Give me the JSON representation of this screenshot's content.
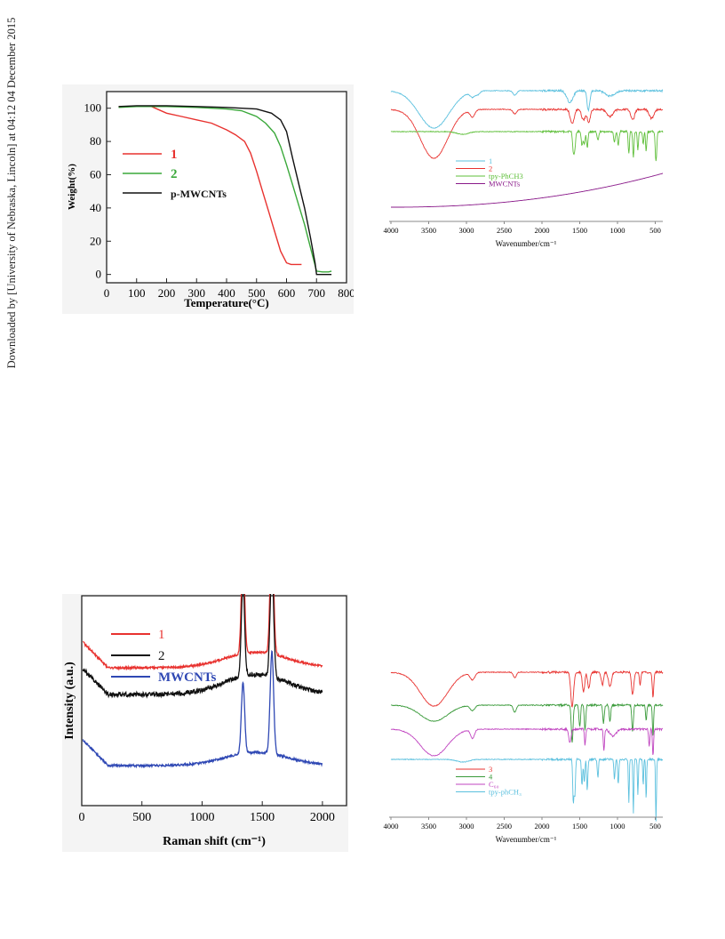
{
  "download_note": "Downloaded by [University of Nebraska, Lincoln] at 04:12 04 December 2015",
  "chart_data": [
    {
      "id": "tga",
      "type": "line",
      "xlabel": "Temperature(°C)",
      "ylabel": "Weight(%)",
      "xlim": [
        0,
        800
      ],
      "ylim": [
        -5,
        110
      ],
      "xticks": [
        "0",
        "100",
        "200",
        "300",
        "400",
        "500",
        "600",
        "700",
        "800"
      ],
      "yticks": [
        "0",
        "20",
        "40",
        "60",
        "80",
        "100"
      ],
      "grid": false,
      "legend_position": "middle-left",
      "series": [
        {
          "name": "1",
          "color": "#e8322f",
          "x": [
            40,
            100,
            150,
            200,
            250,
            300,
            350,
            400,
            430,
            460,
            480,
            500,
            520,
            540,
            560,
            580,
            600,
            615,
            630,
            650
          ],
          "y": [
            101,
            101,
            101,
            97,
            95,
            93,
            91,
            87,
            84,
            80,
            73,
            62,
            50,
            38,
            26,
            14,
            7,
            6,
            6,
            6
          ]
        },
        {
          "name": "2",
          "color": "#3aa83a",
          "x": [
            40,
            100,
            200,
            300,
            400,
            450,
            500,
            530,
            560,
            580,
            600,
            620,
            640,
            660,
            680,
            700,
            720,
            740,
            750
          ],
          "y": [
            100.5,
            101,
            101,
            100.5,
            99.5,
            98.5,
            95,
            91,
            85,
            77,
            66,
            54,
            42,
            30,
            16,
            2,
            1.5,
            1.5,
            2
          ]
        },
        {
          "name": "p-MWCNTs",
          "color": "#111111",
          "x": [
            40,
            100,
            200,
            300,
            400,
            500,
            550,
            580,
            600,
            610,
            620,
            640,
            660,
            680,
            695,
            700,
            720,
            740,
            750
          ],
          "y": [
            101,
            101.5,
            101.5,
            101,
            100.5,
            99.5,
            97,
            93,
            86,
            78,
            70,
            55,
            40,
            22,
            7,
            0,
            0,
            0,
            0
          ]
        }
      ]
    },
    {
      "id": "ftir1",
      "type": "line",
      "xlabel": "Wavenumber/cm⁻¹",
      "ylabel": "",
      "xlim": [
        4000,
        400
      ],
      "xticks": [
        "4000",
        "3500",
        "3000",
        "2500",
        "2000",
        "1500",
        "1000",
        "500"
      ],
      "grid": false,
      "legend_position": "bottom-center",
      "series": [
        {
          "name": "1",
          "color": "#5bc0de",
          "baseline": 7,
          "peaks": [
            [
              3430,
              42,
              200
            ],
            [
              2920,
              6,
              30
            ],
            [
              2850,
              4,
              25
            ],
            [
              2360,
              5,
              25
            ],
            [
              1630,
              13,
              40
            ],
            [
              1385,
              22,
              18
            ],
            [
              1100,
              6,
              60
            ]
          ]
        },
        {
          "name": "2",
          "color": "#e8322f",
          "baseline": 28,
          "peaks": [
            [
              3430,
              55,
              180
            ],
            [
              2920,
              8,
              30
            ],
            [
              2360,
              5,
              25
            ],
            [
              1600,
              16,
              25
            ],
            [
              1450,
              12,
              25
            ],
            [
              1380,
              14,
              20
            ],
            [
              1100,
              8,
              40
            ],
            [
              800,
              12,
              25
            ],
            [
              550,
              10,
              30
            ]
          ]
        },
        {
          "name": "tpy-PhCH3",
          "color": "#5fbf3a",
          "baseline": 53,
          "peaks": [
            [
              3050,
              3,
              80
            ],
            [
              1585,
              22,
              10
            ],
            [
              1565,
              18,
              10
            ],
            [
              1470,
              16,
              10
            ],
            [
              1440,
              14,
              10
            ],
            [
              1400,
              18,
              10
            ],
            [
              1260,
              10,
              10
            ],
            [
              1040,
              12,
              10
            ],
            [
              990,
              15,
              10
            ],
            [
              850,
              25,
              8
            ],
            [
              790,
              30,
              8
            ],
            [
              730,
              20,
              8
            ],
            [
              660,
              15,
              8
            ],
            [
              620,
              22,
              8
            ],
            [
              490,
              33,
              10
            ]
          ]
        },
        {
          "name": "MWCNTs",
          "color": "#8a1a8a",
          "baseline": 138,
          "rise": 38
        }
      ]
    },
    {
      "id": "raman",
      "type": "line",
      "xlabel": "Raman shift (cm⁻¹)",
      "ylabel": "Intensity (a.u.)",
      "xlim": [
        0,
        2200
      ],
      "xticks": [
        "0",
        "500",
        "1000",
        "1500",
        "2000"
      ],
      "grid": false,
      "legend_position": "top-left",
      "series": [
        {
          "name": "1",
          "color": "#e8322f",
          "baseline": 155,
          "bump": 35,
          "peaks": [
            [
              1340,
              115,
              30
            ],
            [
              1580,
              140,
              32
            ]
          ]
        },
        {
          "name": "2",
          "color": "#111111",
          "baseline": 125,
          "bump": 45,
          "peaks": [
            [
              1340,
              105,
              30
            ],
            [
              1580,
              130,
              32
            ]
          ]
        },
        {
          "name": "MWCNTs",
          "color": "#2f48b4",
          "baseline": 45,
          "bump": 30,
          "peaks": [
            [
              1340,
              80,
              30
            ],
            [
              1580,
              115,
              32
            ]
          ]
        }
      ]
    },
    {
      "id": "ftir2",
      "type": "line",
      "xlabel": "Wavenumber/cm⁻¹",
      "ylabel": "",
      "xlim": [
        4000,
        400
      ],
      "xticks": [
        "4000",
        "3500",
        "3000",
        "2500",
        "2000",
        "1500",
        "1000",
        "500"
      ],
      "grid": false,
      "legend_position": "bottom-center",
      "series": [
        {
          "name": "3",
          "color": "#e8322f",
          "baseline": 8,
          "peaks": [
            [
              3430,
              38,
              180
            ],
            [
              2920,
              8,
              30
            ],
            [
              2360,
              6,
              20
            ],
            [
              1600,
              40,
              18
            ],
            [
              1450,
              22,
              15
            ],
            [
              1380,
              18,
              15
            ],
            [
              1200,
              14,
              15
            ],
            [
              1100,
              16,
              20
            ],
            [
              800,
              25,
              15
            ],
            [
              700,
              14,
              10
            ],
            [
              530,
              28,
              10
            ]
          ]
        },
        {
          "name": "4",
          "color": "#3a9a3a",
          "baseline": 45,
          "peaks": [
            [
              3430,
              18,
              180
            ],
            [
              2920,
              6,
              30
            ],
            [
              2360,
              8,
              20
            ],
            [
              1600,
              42,
              12
            ],
            [
              1500,
              25,
              10
            ],
            [
              1430,
              28,
              10
            ],
            [
              1185,
              20,
              10
            ],
            [
              1100,
              18,
              10
            ],
            [
              800,
              30,
              10
            ],
            [
              620,
              18,
              8
            ],
            [
              530,
              35,
              8
            ]
          ]
        },
        {
          "name": "C60",
          "name_display": "C₆₀",
          "color": "#c044c0",
          "baseline": 72,
          "peaks": [
            [
              3430,
              30,
              180
            ],
            [
              2920,
              10,
              25
            ],
            [
              1630,
              15,
              15
            ],
            [
              1430,
              18,
              8
            ],
            [
              1180,
              24,
              8
            ],
            [
              1060,
              8,
              40
            ],
            [
              580,
              20,
              8
            ],
            [
              530,
              30,
              8
            ]
          ]
        },
        {
          "name": "tpy-phCH3",
          "name_display": "tpy-phCH₃",
          "color": "#5bc0de",
          "baseline": 106,
          "peaks": [
            [
              3050,
              3,
              80
            ],
            [
              1585,
              48,
              8
            ],
            [
              1565,
              40,
              8
            ],
            [
              1470,
              30,
              8
            ],
            [
              1440,
              25,
              8
            ],
            [
              1400,
              35,
              8
            ],
            [
              1260,
              20,
              8
            ],
            [
              1040,
              22,
              8
            ],
            [
              990,
              28,
              8
            ],
            [
              850,
              48,
              6
            ],
            [
              790,
              60,
              6
            ],
            [
              730,
              40,
              6
            ],
            [
              660,
              30,
              6
            ],
            [
              620,
              45,
              6
            ],
            [
              490,
              70,
              6
            ]
          ]
        }
      ]
    }
  ]
}
